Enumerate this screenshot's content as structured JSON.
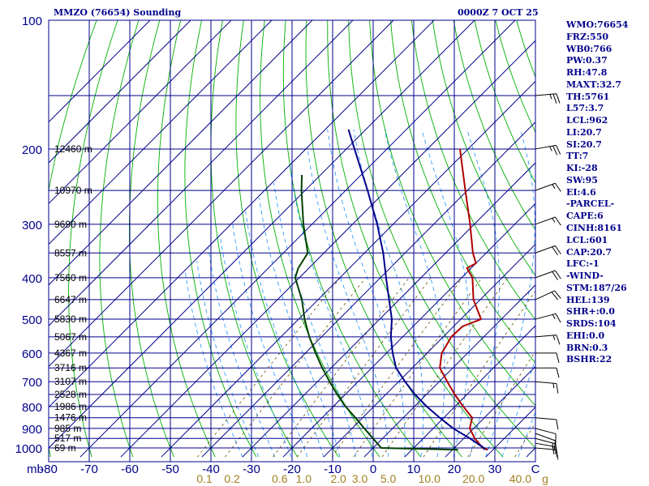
{
  "header": {
    "station_title": "MMZO (76654) Sounding",
    "valid_time": "0000Z  7 OCT 25"
  },
  "indices": [
    "WMO:76654",
    "FRZ:550",
    "WB0:766",
    "PW:0.37",
    "RH:47.8",
    "MAXT:32.7",
    "TH:5761",
    "L57:3.7",
    "LCL:962",
    "LI:20.7",
    "SI:20.7",
    "TT:7",
    "KI:-28",
    "SW:95",
    "EI:4.6",
    "-PARCEL-",
    "CAPE:6",
    "CINH:8161",
    "LCL:601",
    "CAP:20.7",
    "LFC:-1",
    "-WIND-",
    "STM:187/26",
    "HEL:139",
    "SHR+:0.0",
    "SRDS:104",
    "EHI:0.0",
    "BRN:0.3",
    "BSHR:22"
  ],
  "chart_data": {
    "type": "skew-t log-p",
    "colors": {
      "frame": "#00008b",
      "isotherm": "#00008b",
      "dry_adiabat": "#00b000",
      "moist_adiabat": "#1e90ff",
      "mixing_ratio": "#6b4f00",
      "temperature": "#b00000",
      "dewpoint": "#00008b",
      "wetbulb": "#004000",
      "mixing_label": "#a08020",
      "wind_barbs": "#000000"
    },
    "pressure_axis": {
      "unit": "mb",
      "ticks": [
        100,
        200,
        300,
        400,
        500,
        600,
        700,
        800,
        900,
        1000
      ],
      "labels": [
        "100",
        "200",
        "300",
        "400",
        "500",
        "600",
        "700",
        "800",
        "900",
        "1000"
      ],
      "range": [
        100,
        1050
      ],
      "scale": "log"
    },
    "temperature_axis": {
      "unit": "C",
      "ticks": [
        -80,
        -70,
        -60,
        -50,
        -40,
        -30,
        -20,
        -10,
        0,
        10,
        20,
        30
      ],
      "labels": [
        "-80",
        "-70",
        "-60",
        "-50",
        "-40",
        "-30",
        "-20",
        "-10",
        "0",
        "10",
        "20",
        "30"
      ],
      "range": [
        -80,
        40
      ],
      "unit_prefix": "mb",
      "unit_suffix": "C",
      "skew_per_decade_mb": 105
    },
    "mixing_ratio_labels": {
      "values": [
        0.1,
        0.2,
        0.6,
        1.0,
        2.0,
        3.0,
        5.0,
        10.0,
        20.0,
        40.0
      ],
      "labels": [
        "0.1",
        "0.2",
        "0.6",
        "1.0",
        "2.0",
        "3.0",
        "5.0",
        "10.0",
        "20.0",
        "40.0"
      ],
      "unit": "g/kg",
      "unit_label": "g"
    },
    "height_labels": [
      {
        "p": 200,
        "text": "12460 m"
      },
      {
        "p": 250,
        "text": "10970 m"
      },
      {
        "p": 300,
        "text": "9690 m"
      },
      {
        "p": 350,
        "text": "8557 m"
      },
      {
        "p": 400,
        "text": "7560 m"
      },
      {
        "p": 450,
        "text": "6647 m"
      },
      {
        "p": 500,
        "text": "5830 m"
      },
      {
        "p": 550,
        "text": "5067 m"
      },
      {
        "p": 600,
        "text": "4367 m"
      },
      {
        "p": 650,
        "text": "3716 m"
      },
      {
        "p": 700,
        "text": "3107 m"
      },
      {
        "p": 750,
        "text": "2528 m"
      },
      {
        "p": 800,
        "text": "1986 m"
      },
      {
        "p": 850,
        "text": "1476 m"
      },
      {
        "p": 900,
        "text": "985 m"
      },
      {
        "p": 950,
        "text": "517 m"
      },
      {
        "p": 1000,
        "text": "69 m"
      }
    ],
    "series": [
      {
        "name": "temperature",
        "points": [
          [
            1010,
            28.7
          ],
          [
            1000,
            27.0
          ],
          [
            950,
            22.7
          ],
          [
            900,
            19.0
          ],
          [
            850,
            17.0
          ],
          [
            800,
            12.0
          ],
          [
            750,
            7.0
          ],
          [
            700,
            2.0
          ],
          [
            650,
            -3.2
          ],
          [
            600,
            -6.4
          ],
          [
            580,
            -7.0
          ],
          [
            550,
            -8.0
          ],
          [
            520,
            -7.8
          ],
          [
            500,
            -5.0
          ],
          [
            450,
            -11.7
          ],
          [
            400,
            -17.3
          ],
          [
            380,
            -21.0
          ],
          [
            370,
            -20.0
          ],
          [
            350,
            -23.3
          ],
          [
            300,
            -31.0
          ],
          [
            250,
            -40.5
          ],
          [
            200,
            -52.0
          ]
        ]
      },
      {
        "name": "dewpoint",
        "points": [
          [
            1010,
            27.9
          ],
          [
            1000,
            27.3
          ],
          [
            950,
            21.5
          ],
          [
            900,
            14.9
          ],
          [
            850,
            9.0
          ],
          [
            800,
            3.0
          ],
          [
            750,
            -2.8
          ],
          [
            700,
            -8.4
          ],
          [
            650,
            -14.0
          ],
          [
            600,
            -18.5
          ],
          [
            550,
            -22.9
          ],
          [
            500,
            -27.0
          ],
          [
            450,
            -32.5
          ],
          [
            400,
            -38.6
          ],
          [
            350,
            -45.4
          ],
          [
            300,
            -53.9
          ],
          [
            250,
            -64.6
          ],
          [
            200,
            -78.0
          ],
          [
            180,
            -84.3
          ]
        ]
      },
      {
        "name": "wetbulb",
        "points": [
          [
            1010,
            21.4
          ],
          [
            1000,
            2.0
          ],
          [
            950,
            -2.4
          ],
          [
            900,
            -7.0
          ],
          [
            850,
            -11.8
          ],
          [
            800,
            -17.0
          ],
          [
            750,
            -22.0
          ],
          [
            700,
            -27.0
          ],
          [
            650,
            -32.2
          ],
          [
            600,
            -37.5
          ],
          [
            550,
            -43.0
          ],
          [
            500,
            -48.5
          ],
          [
            450,
            -54.0
          ],
          [
            400,
            -61.0
          ],
          [
            380,
            -62.6
          ],
          [
            350,
            -64.0
          ],
          [
            300,
            -72.1
          ],
          [
            250,
            -80.9
          ],
          [
            230,
            -84.6
          ]
        ]
      }
    ],
    "wind_barbs": [
      {
        "p": 1000,
        "dir": 95,
        "spd": 15
      },
      {
        "p": 975,
        "dir": 100,
        "spd": 15
      },
      {
        "p": 950,
        "dir": 105,
        "spd": 15
      },
      {
        "p": 925,
        "dir": 110,
        "spd": 10
      },
      {
        "p": 900,
        "dir": 105,
        "spd": 10
      },
      {
        "p": 850,
        "dir": 95,
        "spd": 10
      },
      {
        "p": 700,
        "dir": 95,
        "spd": 15
      },
      {
        "p": 650,
        "dir": 90,
        "spd": 10
      },
      {
        "p": 600,
        "dir": 90,
        "spd": 10
      },
      {
        "p": 550,
        "dir": 85,
        "spd": 15
      },
      {
        "p": 500,
        "dir": 75,
        "spd": 15
      },
      {
        "p": 450,
        "dir": 65,
        "spd": 20
      },
      {
        "p": 400,
        "dir": 70,
        "spd": 20
      },
      {
        "p": 350,
        "dir": 70,
        "spd": 20
      },
      {
        "p": 300,
        "dir": 70,
        "spd": 15
      },
      {
        "p": 250,
        "dir": 70,
        "spd": 15
      },
      {
        "p": 200,
        "dir": 80,
        "spd": 25
      },
      {
        "p": 150,
        "dir": 85,
        "spd": 25
      }
    ]
  }
}
